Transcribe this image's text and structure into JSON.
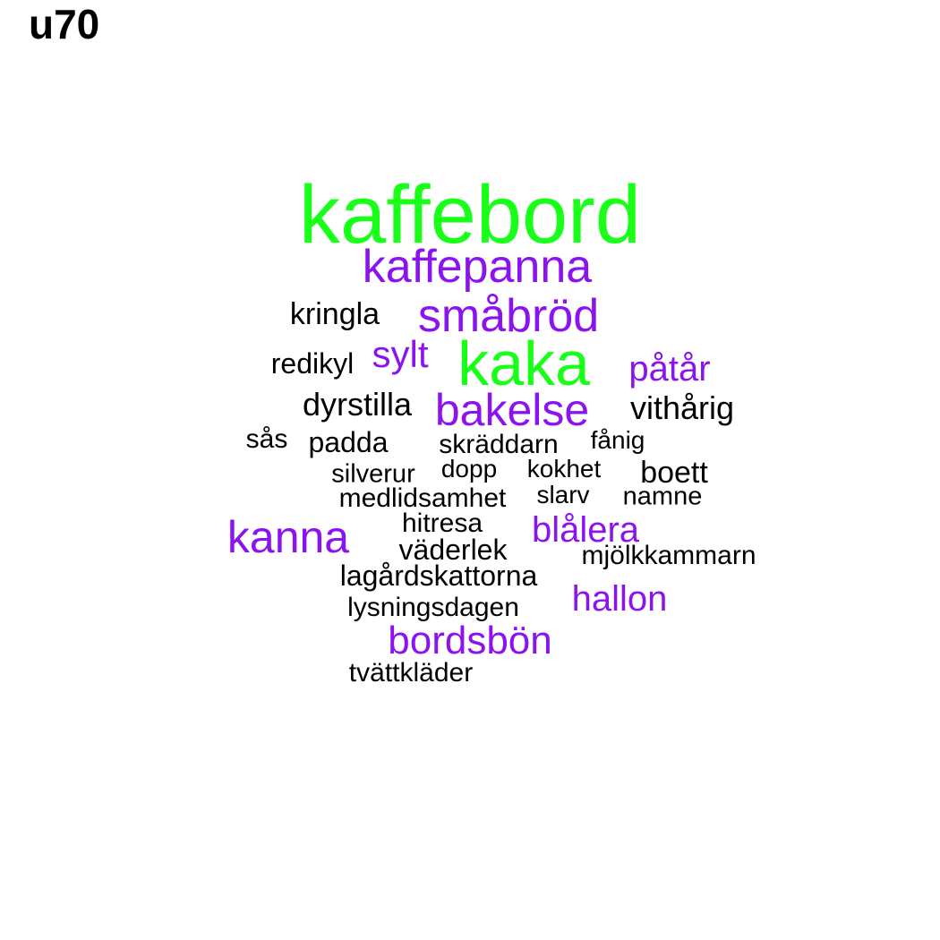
{
  "title": "u70",
  "colors": {
    "green": "#1aff1a",
    "purple": "#8b14ee",
    "black": "#000000"
  },
  "words": [
    {
      "text": "kaffebord",
      "color": "green"
    },
    {
      "text": "kaffepanna",
      "color": "purple"
    },
    {
      "text": "kringla",
      "color": "black"
    },
    {
      "text": "småbröd",
      "color": "purple"
    },
    {
      "text": "redikyl",
      "color": "black"
    },
    {
      "text": "sylt",
      "color": "purple"
    },
    {
      "text": "kaka",
      "color": "green"
    },
    {
      "text": "påtår",
      "color": "purple"
    },
    {
      "text": "dyrstilla",
      "color": "black"
    },
    {
      "text": "bakelse",
      "color": "purple"
    },
    {
      "text": "vithårig",
      "color": "black"
    },
    {
      "text": "sås",
      "color": "black"
    },
    {
      "text": "padda",
      "color": "black"
    },
    {
      "text": "skräddarn",
      "color": "black"
    },
    {
      "text": "fånig",
      "color": "black"
    },
    {
      "text": "silverur",
      "color": "black"
    },
    {
      "text": "dopp",
      "color": "black"
    },
    {
      "text": "kokhet",
      "color": "black"
    },
    {
      "text": "boett",
      "color": "black"
    },
    {
      "text": "medlidsamhet",
      "color": "black"
    },
    {
      "text": "slarv",
      "color": "black"
    },
    {
      "text": "namne",
      "color": "black"
    },
    {
      "text": "kanna",
      "color": "purple"
    },
    {
      "text": "hitresa",
      "color": "black"
    },
    {
      "text": "blålera",
      "color": "purple"
    },
    {
      "text": "väderlek",
      "color": "black"
    },
    {
      "text": "mjölkkammarn",
      "color": "black"
    },
    {
      "text": "lagårdskattorna",
      "color": "black"
    },
    {
      "text": "hallon",
      "color": "purple"
    },
    {
      "text": "lysningsdagen",
      "color": "black"
    },
    {
      "text": "bordsbön",
      "color": "purple"
    },
    {
      "text": "tvättkläder",
      "color": "black"
    }
  ]
}
